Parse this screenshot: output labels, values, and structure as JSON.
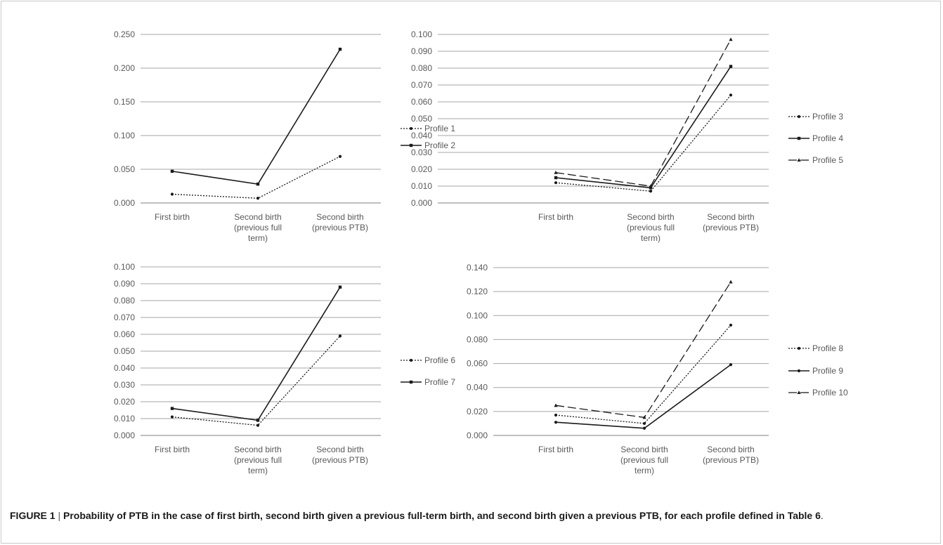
{
  "chart_data": [
    {
      "type": "line",
      "categories": [
        [
          "First birth"
        ],
        [
          "Second birth",
          "(previous full",
          "term)"
        ],
        [
          "Second birth",
          "(previous PTB)"
        ]
      ],
      "ylim": [
        0,
        0.25
      ],
      "ytick_labels": [
        "0.000",
        "0.050",
        "0.100",
        "0.150",
        "0.200",
        "0.250"
      ],
      "series": [
        {
          "name": "Profile 1",
          "values": [
            0.013,
            0.007,
            0.069
          ],
          "style": "dotted",
          "marker": "dot"
        },
        {
          "name": "Profile 2",
          "values": [
            0.047,
            0.028,
            0.228
          ],
          "style": "solid",
          "marker": "square"
        }
      ]
    },
    {
      "type": "line",
      "categories": [
        [
          "First birth"
        ],
        [
          "Second birth",
          "(previous full",
          "term)"
        ],
        [
          "Second birth",
          "(previous PTB)"
        ]
      ],
      "ylim": [
        0,
        0.1
      ],
      "ytick_labels": [
        "0.000",
        "0.010",
        "0.020",
        "0.030",
        "0.040",
        "0.050",
        "0.060",
        "0.070",
        "0.080",
        "0.090",
        "0.100"
      ],
      "series": [
        {
          "name": "Profile 3",
          "values": [
            0.012,
            0.007,
            0.064
          ],
          "style": "dotted",
          "marker": "dot"
        },
        {
          "name": "Profile 4",
          "values": [
            0.015,
            0.009,
            0.081
          ],
          "style": "solid",
          "marker": "square"
        },
        {
          "name": "Profile 5",
          "values": [
            0.018,
            0.01,
            0.097
          ],
          "style": "dashed",
          "marker": "triangle"
        }
      ]
    },
    {
      "type": "line",
      "categories": [
        [
          "First birth"
        ],
        [
          "Second birth",
          "(previous full",
          "term)"
        ],
        [
          "Second birth",
          "(previous PTB)"
        ]
      ],
      "ylim": [
        0,
        0.1
      ],
      "ytick_labels": [
        "0.000",
        "0.010",
        "0.020",
        "0.030",
        "0.040",
        "0.050",
        "0.060",
        "0.070",
        "0.080",
        "0.090",
        "0.100"
      ],
      "series": [
        {
          "name": "Profile 6",
          "values": [
            0.011,
            0.006,
            0.059
          ],
          "style": "dotted",
          "marker": "dot"
        },
        {
          "name": "Profile 7",
          "values": [
            0.016,
            0.009,
            0.088
          ],
          "style": "solid",
          "marker": "square"
        }
      ]
    },
    {
      "type": "line",
      "categories": [
        [
          "First birth"
        ],
        [
          "Second birth",
          "(previous full",
          "term)"
        ],
        [
          "Second birth",
          "(previous PTB)"
        ]
      ],
      "ylim": [
        0,
        0.14
      ],
      "ytick_labels": [
        "0.000",
        "0.020",
        "0.040",
        "0.060",
        "0.080",
        "0.100",
        "0.120",
        "0.140"
      ],
      "series": [
        {
          "name": "Profile 8",
          "values": [
            0.017,
            0.01,
            0.092
          ],
          "style": "dotted",
          "marker": "dot"
        },
        {
          "name": "Profile 9",
          "values": [
            0.011,
            0.006,
            0.059
          ],
          "style": "solid",
          "marker": "dot"
        },
        {
          "name": "Profile 10",
          "values": [
            0.025,
            0.015,
            0.128
          ],
          "style": "dashed",
          "marker": "triangle"
        }
      ]
    }
  ],
  "caption": {
    "label": "FIGURE 1",
    "separator": " | ",
    "text": "Probability of PTB in the case of first birth, second birth given a previous full-term birth, and second birth given a previous PTB, for each profile defined in Table 6",
    "end": "."
  },
  "colors": {
    "line": "#1a1a1a",
    "grid": "#a6a6a6",
    "axis": "#7f7f7f",
    "text": "#595959"
  }
}
